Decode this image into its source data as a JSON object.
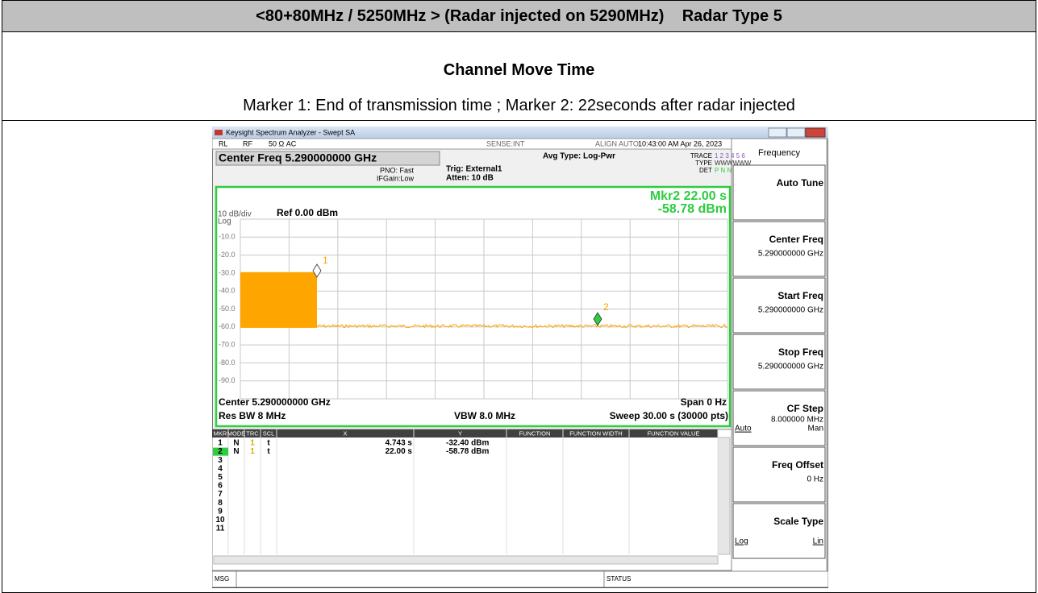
{
  "header": {
    "title": "<80+80MHz / 5250MHz > (Radar injected on 5290MHz)    Radar Type 5",
    "subtitle": "Channel Move Time",
    "note": "Marker 1: End of transmission time ; Marker 2: 22seconds after radar injected"
  },
  "analyzer": {
    "window_title": "Keysight Spectrum Analyzer - Swept SA",
    "status": [
      "RL",
      "RF",
      "50 Ω  AC",
      "SENSE:INT",
      "ALIGN AUTO",
      "10:43:00 AM Apr 26, 2023"
    ],
    "center_freq": "Center Freq 5.290000000 GHz",
    "pno": "PNO: Fast",
    "ifgain": "IFGain:Low",
    "trig": "Trig: External1",
    "atten": "Atten: 10 dB",
    "avg_type": "Avg Type: Log-Pwr",
    "trace_labels": [
      "TRACE",
      "TYPE",
      "DET"
    ],
    "trace_values": [
      "1 2 3 4 5 6",
      "WWWWWW",
      "P N N N N N"
    ],
    "scale": "10 dB/div",
    "log": "Log",
    "ref": "Ref 0.00 dBm",
    "marker_readout": [
      "Mkr2 22.00 s",
      "-58.78 dBm"
    ],
    "y_labels": [
      "-10.0",
      "-20.0",
      "-30.0",
      "-40.0",
      "-50.0",
      "-60.0",
      "-70.0",
      "-80.0",
      "-90.0"
    ],
    "footer": {
      "center": "Center 5.290000000 GHz",
      "span": "Span 0 Hz",
      "rbw": "Res BW 8 MHz",
      "vbw": "VBW 8.0 MHz",
      "sweep": "Sweep  30.00 s (30000 pts)"
    },
    "marker_labels": [
      "1",
      "2"
    ],
    "marker_table": {
      "columns": [
        "MKR",
        "MODE",
        "TRC",
        "SCL",
        "X",
        "Y",
        "FUNCTION",
        "FUNCTION WIDTH",
        "FUNCTION VALUE"
      ],
      "rows": [
        [
          "1",
          "N",
          "1",
          "t",
          "4.743 s",
          "-32.40 dBm"
        ],
        [
          "2",
          "N",
          "1",
          "t",
          "22.00 s",
          "-58.78 dBm"
        ],
        [
          "3"
        ],
        [
          "4"
        ],
        [
          "5"
        ],
        [
          "6"
        ],
        [
          "7"
        ],
        [
          "8"
        ],
        [
          "9"
        ],
        [
          "10"
        ],
        [
          "11"
        ]
      ]
    },
    "msg": "MSG",
    "status_label": "STATUS"
  },
  "softkeys": [
    {
      "label": "Frequency"
    },
    {
      "label": "Auto Tune"
    },
    {
      "label": "Center Freq",
      "value": "5.290000000 GHz"
    },
    {
      "label": "Start Freq",
      "value": "5.290000000 GHz"
    },
    {
      "label": "Stop Freq",
      "value": "5.290000000 GHz"
    },
    {
      "label": "CF Step",
      "value": "8.000000 MHz",
      "options": [
        "Auto",
        "Man"
      ]
    },
    {
      "label": "Freq Offset",
      "value": "0 Hz"
    },
    {
      "label": "Scale Type",
      "options": [
        "Log",
        "Lin"
      ]
    }
  ]
}
